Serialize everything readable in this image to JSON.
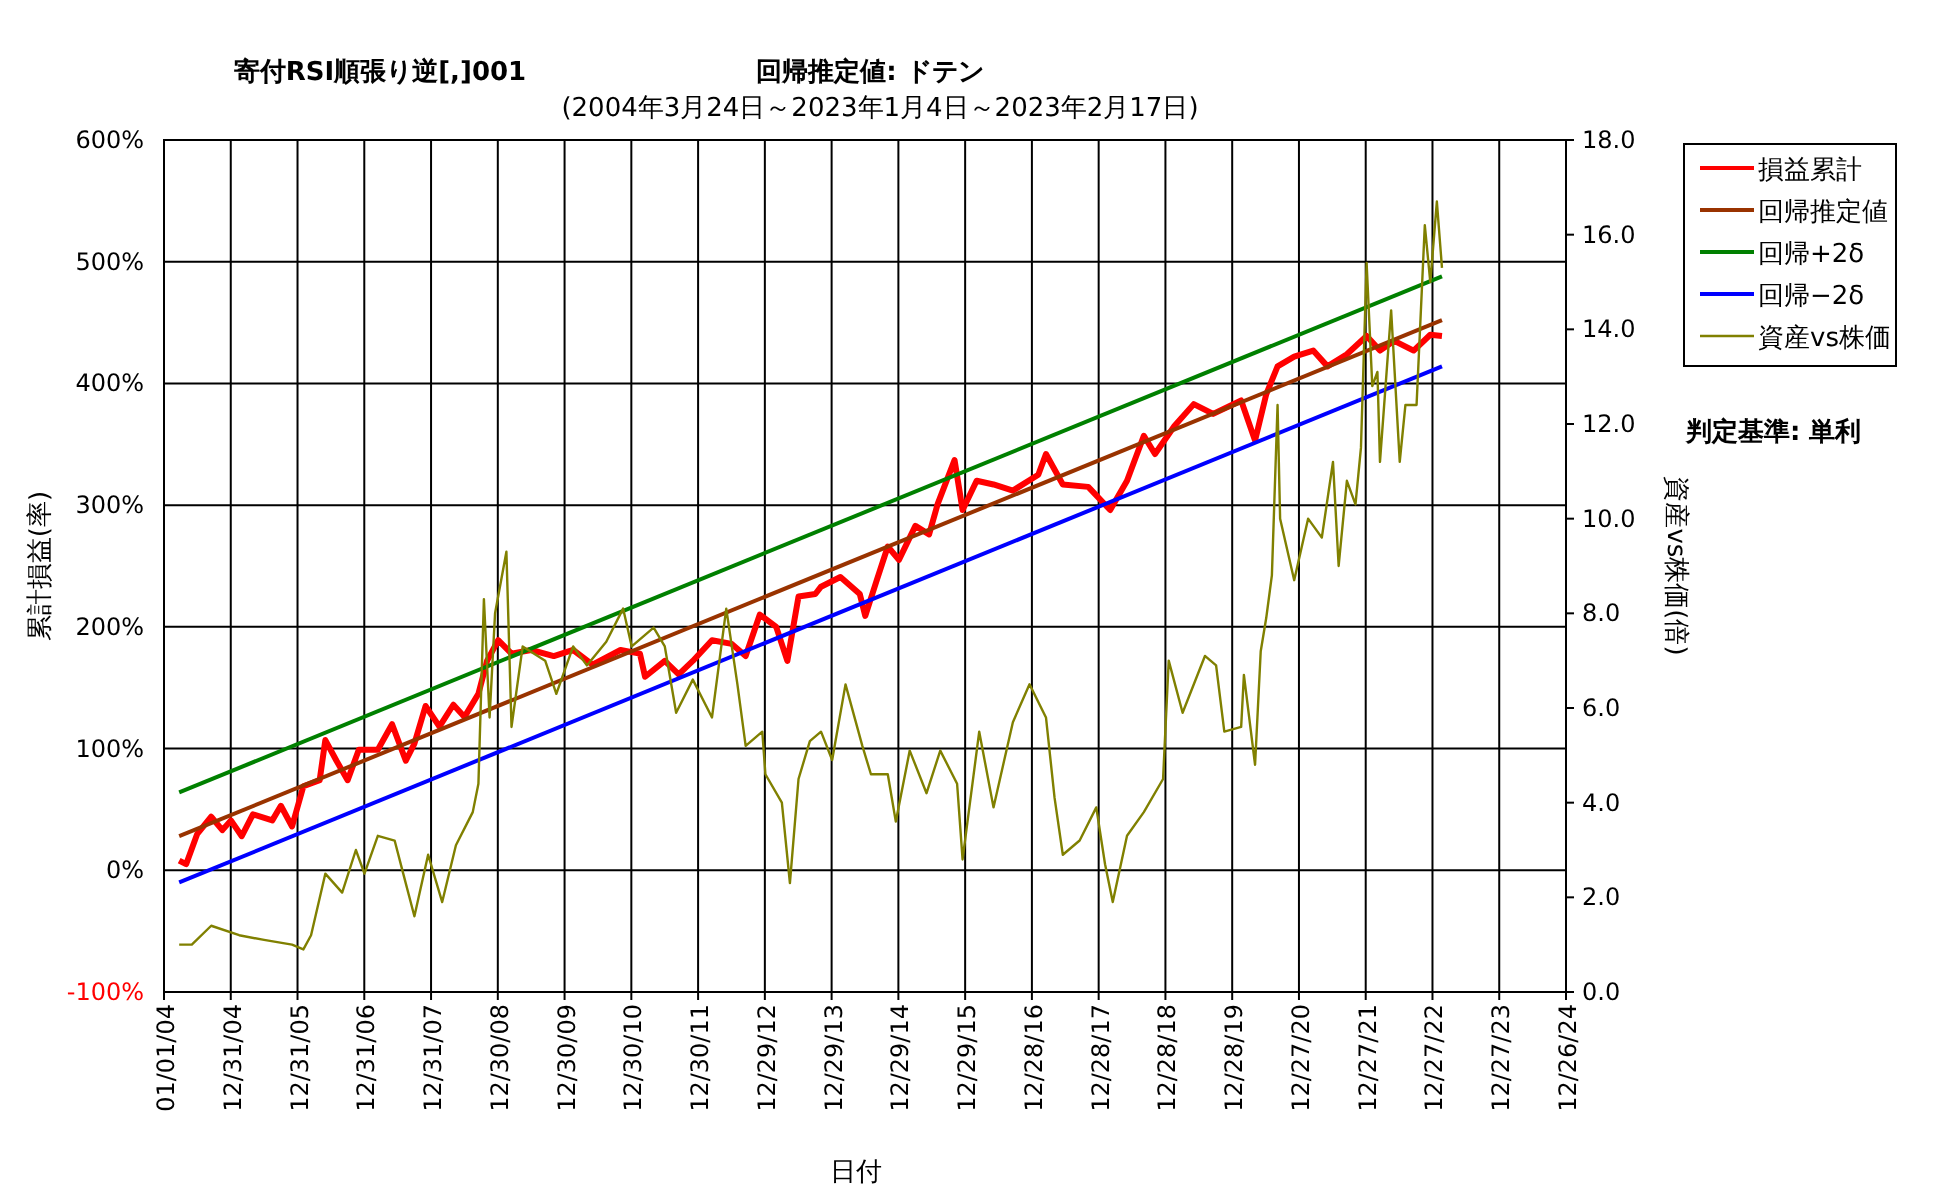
{
  "chart_data": {
    "type": "line",
    "title": "寄付RSI順張り逆[,]001",
    "subtitle": "(2004年3月24日～2023年1月4日～2023年2月17日)",
    "xlabel": "日付",
    "ylabel": "累計損益(率)",
    "y2label": "資産vs株価(倍)",
    "annotations": [
      "回帰推定値: ドテン",
      "判定基準: 単利"
    ],
    "xlim": [
      "2004-01-01",
      "2024-12-26"
    ],
    "xticks": [
      {
        "value": "2004-01-01",
        "label": "01/01/04"
      },
      {
        "value": "2004-12-31",
        "label": "12/31/04"
      },
      {
        "value": "2005-12-31",
        "label": "12/31/05"
      },
      {
        "value": "2006-12-31",
        "label": "12/31/06"
      },
      {
        "value": "2007-12-31",
        "label": "12/31/07"
      },
      {
        "value": "2008-12-30",
        "label": "12/30/08"
      },
      {
        "value": "2009-12-30",
        "label": "12/30/09"
      },
      {
        "value": "2010-12-30",
        "label": "12/30/10"
      },
      {
        "value": "2011-12-30",
        "label": "12/30/11"
      },
      {
        "value": "2012-12-29",
        "label": "12/29/12"
      },
      {
        "value": "2013-12-29",
        "label": "12/29/13"
      },
      {
        "value": "2014-12-29",
        "label": "12/29/14"
      },
      {
        "value": "2015-12-29",
        "label": "12/29/15"
      },
      {
        "value": "2016-12-28",
        "label": "12/28/16"
      },
      {
        "value": "2017-12-28",
        "label": "12/28/17"
      },
      {
        "value": "2018-12-28",
        "label": "12/28/18"
      },
      {
        "value": "2019-12-28",
        "label": "12/28/19"
      },
      {
        "value": "2020-12-27",
        "label": "12/27/20"
      },
      {
        "value": "2021-12-27",
        "label": "12/27/21"
      },
      {
        "value": "2022-12-27",
        "label": "12/27/22"
      },
      {
        "value": "2023-12-27",
        "label": "12/27/23"
      },
      {
        "value": "2024-12-26",
        "label": "12/26/24"
      }
    ],
    "ylim": [
      -100,
      600
    ],
    "yticks": [
      {
        "value": -100,
        "label": "-100%"
      },
      {
        "value": 0,
        "label": "0%"
      },
      {
        "value": 100,
        "label": "100%"
      },
      {
        "value": 200,
        "label": "200%"
      },
      {
        "value": 300,
        "label": "300%"
      },
      {
        "value": 400,
        "label": "400%"
      },
      {
        "value": 500,
        "label": "500%"
      },
      {
        "value": 600,
        "label": "600%"
      }
    ],
    "y2lim": [
      0,
      18
    ],
    "y2ticks": [
      {
        "value": 0,
        "label": "0.0"
      },
      {
        "value": 2,
        "label": "2.0"
      },
      {
        "value": 4,
        "label": "4.0"
      },
      {
        "value": 6,
        "label": "6.0"
      },
      {
        "value": 8,
        "label": "8.0"
      },
      {
        "value": 10,
        "label": "10.0"
      },
      {
        "value": 12,
        "label": "12.0"
      },
      {
        "value": 14,
        "label": "14.0"
      },
      {
        "value": 16,
        "label": "16.0"
      },
      {
        "value": 18,
        "label": "18.0"
      }
    ],
    "grid": true,
    "legend": "top right",
    "marker": "none",
    "line_style": "solid",
    "series": [
      {
        "name": "損益累計",
        "color": "#ff0000",
        "x": [
          "2004-03-24",
          "2004-05-01",
          "2004-07-01",
          "2004-09-15",
          "2004-11-15",
          "2005-01-01",
          "2005-03-01",
          "2005-05-01",
          "2005-08-15",
          "2005-10-01",
          "2005-12-01",
          "2006-02-01",
          "2006-05-01",
          "2006-06-01",
          "2006-08-01",
          "2006-10-01",
          "2006-12-01",
          "2007-03-15",
          "2007-06-01",
          "2007-08-15",
          "2007-10-01",
          "2007-12-01",
          "2008-02-15",
          "2008-05-01",
          "2008-07-01",
          "2008-09-15",
          "2008-11-01",
          "2009-01-01",
          "2009-03-15",
          "2009-07-01",
          "2009-11-01",
          "2010-02-15",
          "2010-06-01",
          "2010-11-01",
          "2011-02-15",
          "2011-03-15",
          "2011-07-01",
          "2011-09-15",
          "2011-12-01",
          "2012-03-15",
          "2012-07-01",
          "2012-09-15",
          "2012-12-01",
          "2013-03-01",
          "2013-05-01",
          "2013-07-01",
          "2013-10-01",
          "2013-11-01",
          "2014-02-15",
          "2014-06-01",
          "2014-07-01",
          "2014-09-01",
          "2014-11-01",
          "2015-01-01",
          "2015-04-01",
          "2015-06-15",
          "2015-08-01",
          "2015-11-01",
          "2015-12-15",
          "2016-03-01",
          "2016-06-01",
          "2016-09-15",
          "2017-02-01",
          "2017-03-15",
          "2017-06-15",
          "2017-11-01",
          "2018-03-01",
          "2018-06-01",
          "2018-09-01",
          "2018-11-01",
          "2019-02-15",
          "2019-06-01",
          "2019-09-15",
          "2020-02-15",
          "2020-05-01",
          "2020-07-01",
          "2020-09-01",
          "2020-12-01",
          "2021-03-15",
          "2021-06-01",
          "2021-09-15",
          "2022-01-01",
          "2022-03-15",
          "2022-06-01",
          "2022-09-15",
          "2022-12-15",
          "2023-02-17"
        ],
        "values": [
          8,
          5,
          30,
          44,
          33,
          41,
          28,
          46,
          41,
          53,
          36,
          69,
          74,
          107,
          90,
          74,
          99,
          99,
          120,
          90,
          104,
          135,
          118,
          136,
          126,
          145,
          172,
          189,
          178,
          181,
          176,
          181,
          169,
          181,
          178,
          159,
          172,
          161,
          172,
          189,
          186,
          176,
          210,
          200,
          172,
          225,
          227,
          233,
          241,
          227,
          209,
          238,
          266,
          255,
          283,
          276,
          301,
          337,
          296,
          320,
          317,
          312,
          325,
          342,
          317,
          315,
          296,
          320,
          357,
          342,
          365,
          383,
          375,
          386,
          353,
          391,
          414,
          422,
          427,
          414,
          424,
          439,
          427,
          435,
          427,
          440,
          439
        ]
      },
      {
        "name": "回帰推定値",
        "color": "#993300",
        "x": [
          "2004-03-24",
          "2023-02-17"
        ],
        "values": [
          28,
          452
        ]
      },
      {
        "name": "回帰+2δ",
        "color": "#008000",
        "x": [
          "2004-03-24",
          "2023-02-17"
        ],
        "values": [
          64,
          488
        ]
      },
      {
        "name": "回帰−2δ",
        "color": "#0000ff",
        "x": [
          "2004-03-24",
          "2023-02-17"
        ],
        "values": [
          -10,
          414
        ]
      },
      {
        "name": "資産vs株価",
        "color": "#808000",
        "axis": "y2",
        "x": [
          "2004-03-24",
          "2004-06-01",
          "2004-09-15",
          "2005-02-15",
          "2005-07-01",
          "2005-12-01",
          "2006-02-01",
          "2006-03-15",
          "2006-06-01",
          "2006-09-01",
          "2006-11-15",
          "2007-01-01",
          "2007-03-15",
          "2007-06-15",
          "2007-08-01",
          "2007-10-01",
          "2007-12-15",
          "2008-03-01",
          "2008-05-15",
          "2008-08-15",
          "2008-09-15",
          "2008-10-15",
          "2008-11-15",
          "2008-12-15",
          "2009-02-15",
          "2009-03-15",
          "2009-05-15",
          "2009-09-15",
          "2009-11-15",
          "2010-02-15",
          "2010-05-01",
          "2010-08-15",
          "2010-11-15",
          "2011-01-01",
          "2011-05-01",
          "2011-07-01",
          "2011-09-01",
          "2011-12-01",
          "2012-03-15",
          "2012-06-01",
          "2012-08-01",
          "2012-09-15",
          "2012-12-15",
          "2013-01-01",
          "2013-04-01",
          "2013-05-15",
          "2013-07-01",
          "2013-09-01",
          "2013-11-01",
          "2014-01-01",
          "2014-03-15",
          "2014-06-15",
          "2014-08-01",
          "2014-11-01",
          "2014-12-15",
          "2015-03-01",
          "2015-06-01",
          "2015-08-15",
          "2015-11-15",
          "2015-12-15",
          "2016-03-15",
          "2016-06-01",
          "2016-09-15",
          "2016-12-15",
          "2017-03-15",
          "2017-05-01",
          "2017-06-15",
          "2017-09-15",
          "2017-12-15",
          "2018-02-01",
          "2018-03-15",
          "2018-06-01",
          "2018-09-01",
          "2018-12-15",
          "2019-01-15",
          "2019-04-01",
          "2019-08-01",
          "2019-10-01",
          "2019-11-15",
          "2020-02-15",
          "2020-03-01",
          "2020-05-01",
          "2020-06-01",
          "2020-07-01",
          "2020-08-01",
          "2020-09-01",
          "2020-09-15",
          "2020-12-01",
          "2021-02-15",
          "2021-05-01",
          "2021-07-01",
          "2021-08-01",
          "2021-09-15",
          "2021-11-01",
          "2021-12-01",
          "2022-01-01",
          "2022-02-01",
          "2022-03-01",
          "2022-03-15",
          "2022-05-15",
          "2022-07-01",
          "2022-08-01",
          "2022-10-01",
          "2022-11-15",
          "2022-12-15",
          "2023-01-01",
          "2023-01-20",
          "2023-02-17"
        ],
        "values": [
          1.0,
          1.0,
          1.4,
          1.2,
          1.1,
          1.0,
          0.9,
          1.2,
          2.5,
          2.1,
          3.0,
          2.5,
          3.3,
          3.2,
          2.5,
          1.6,
          2.9,
          1.9,
          3.1,
          3.8,
          4.4,
          8.3,
          5.8,
          8.0,
          9.3,
          5.6,
          7.3,
          7.0,
          6.3,
          7.3,
          6.9,
          7.4,
          8.1,
          7.3,
          7.7,
          7.3,
          5.9,
          6.6,
          5.8,
          8.1,
          6.5,
          5.2,
          5.5,
          4.6,
          4.0,
          2.3,
          4.5,
          5.3,
          5.5,
          4.9,
          6.5,
          5.2,
          4.6,
          4.6,
          3.6,
          5.1,
          4.2,
          5.1,
          4.4,
          2.8,
          5.5,
          3.9,
          5.7,
          6.5,
          5.8,
          4.1,
          2.9,
          3.2,
          3.9,
          2.7,
          1.9,
          3.3,
          3.8,
          4.5,
          7.0,
          5.9,
          7.1,
          6.9,
          5.5,
          5.6,
          6.7,
          4.8,
          7.2,
          7.9,
          8.8,
          12.4,
          10.0,
          8.7,
          10.0,
          9.6,
          11.2,
          9.0,
          10.8,
          10.3,
          11.5,
          15.4,
          12.8,
          13.1,
          11.2,
          14.4,
          11.2,
          12.4,
          12.4,
          16.2,
          15.0,
          15.8,
          16.7,
          15.3
        ]
      }
    ]
  }
}
